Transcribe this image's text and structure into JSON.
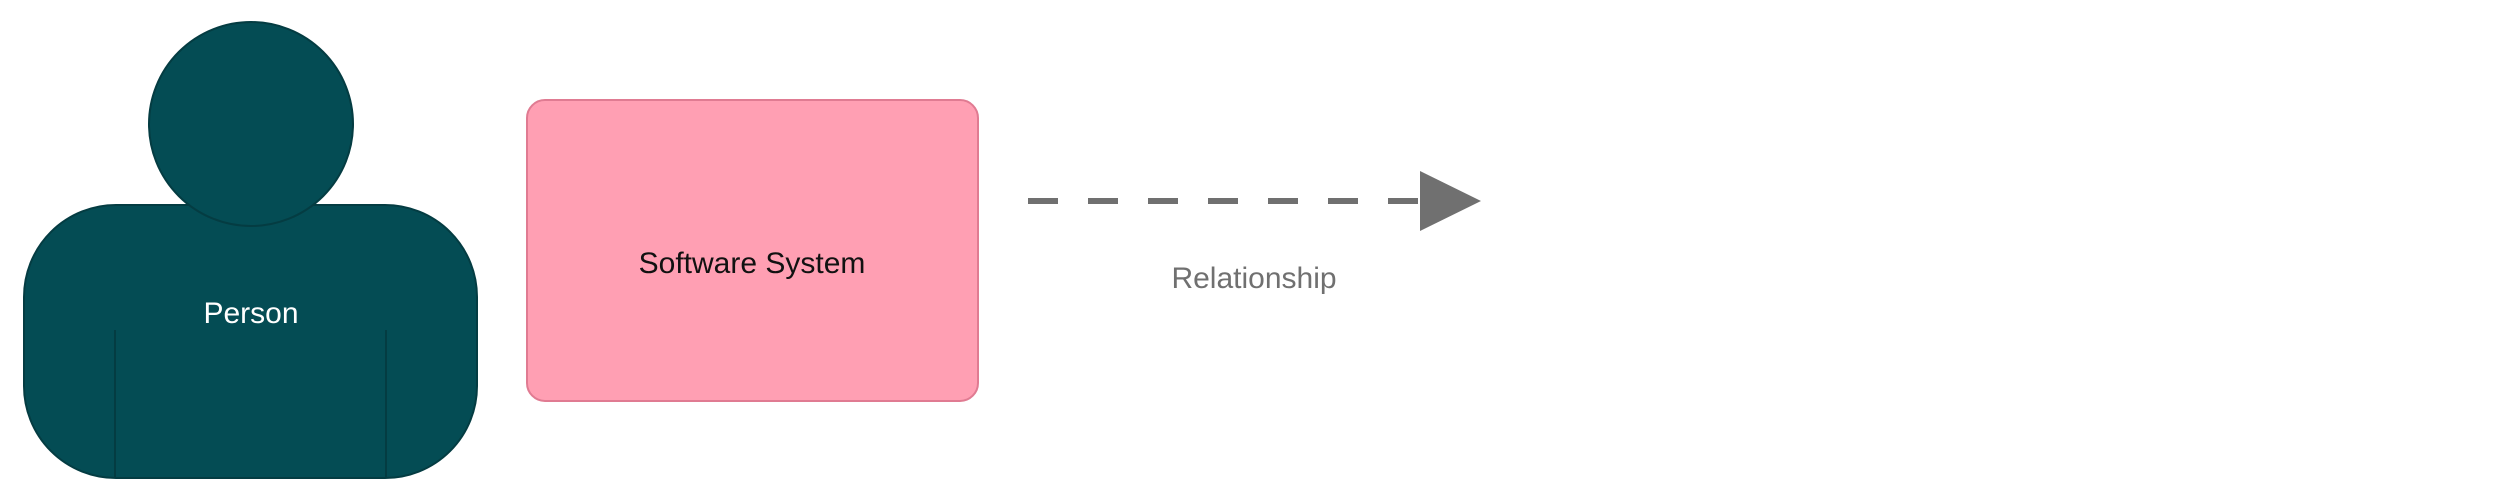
{
  "diagram": {
    "person": {
      "label": "Person",
      "fill": "#044c54",
      "stroke": "#043c42"
    },
    "software_system": {
      "label": "Software System",
      "fill": "#ff9fb3",
      "stroke": "#e07b92"
    },
    "relationship": {
      "label": "Relationship",
      "line_style": "dashed",
      "color": "#707070"
    }
  }
}
